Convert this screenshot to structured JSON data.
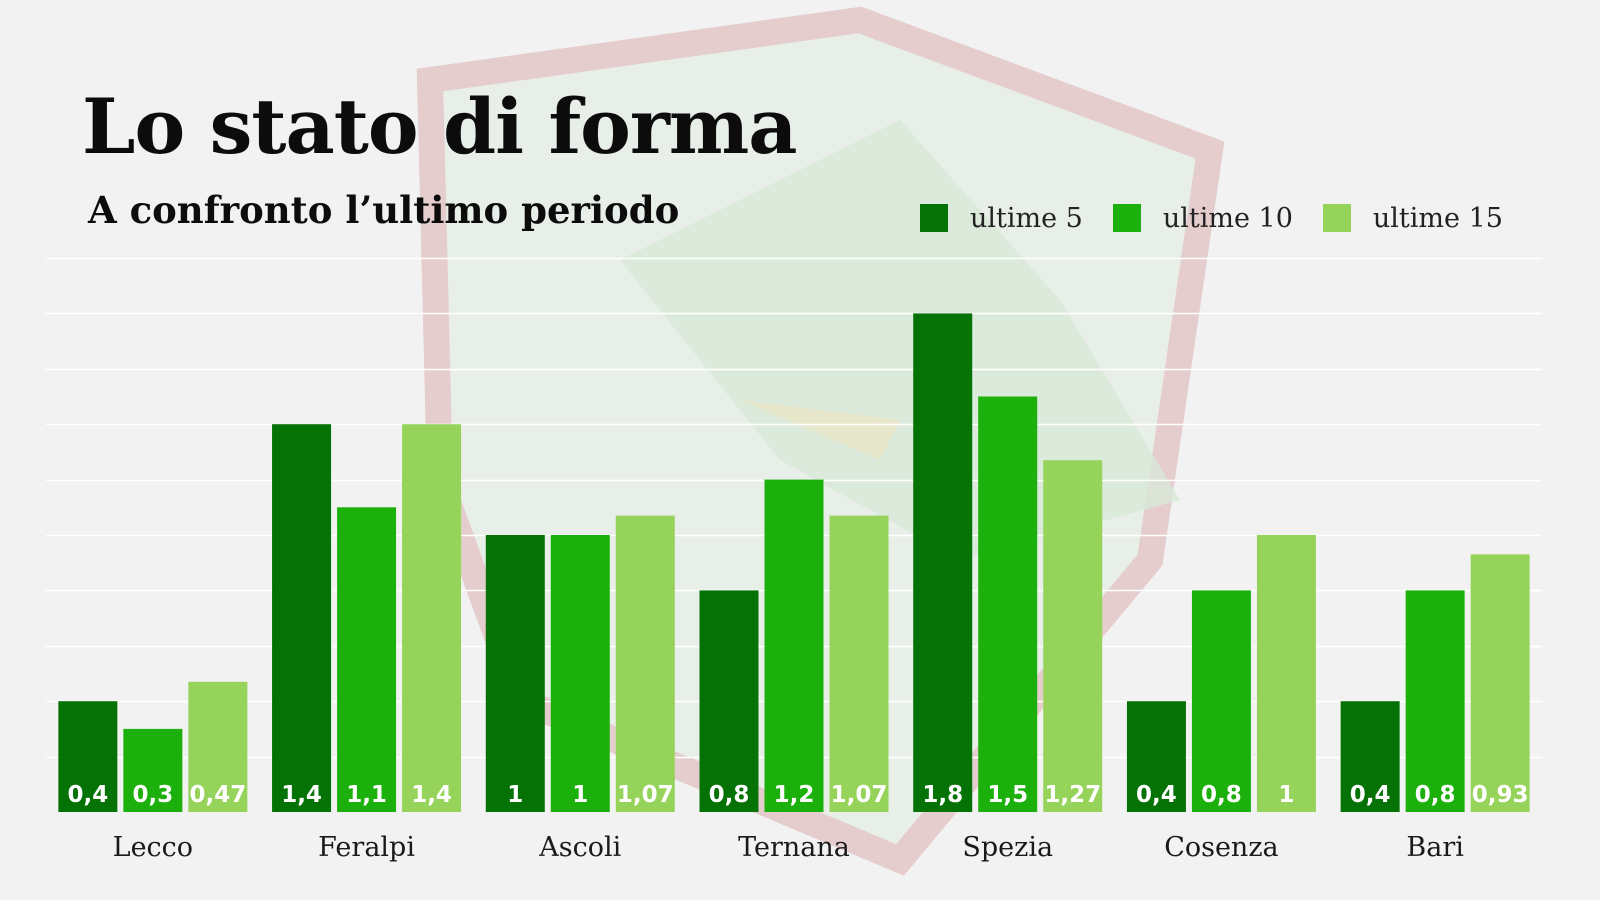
{
  "header": {
    "title": "Lo stato di forma",
    "subtitle": "A confronto l’ultimo periodo"
  },
  "chart_data": {
    "type": "bar",
    "title": "Lo stato di forma",
    "subtitle": "A confronto l’ultimo periodo",
    "categories": [
      "Lecco",
      "Feralpi",
      "Ascoli",
      "Ternana",
      "Spezia",
      "Cosenza",
      "Bari"
    ],
    "series": [
      {
        "name": "ultime 5",
        "color": "#047205",
        "values": [
          0.4,
          1.4,
          1,
          0.8,
          1.8,
          0.4,
          0.4
        ],
        "labels": [
          "0,4",
          "1,4",
          "1",
          "0,8",
          "1,8",
          "0,4",
          "0,4"
        ]
      },
      {
        "name": "ultime 10",
        "color": "#1cb00c",
        "values": [
          0.3,
          1.1,
          1,
          1.2,
          1.5,
          0.8,
          0.8
        ],
        "labels": [
          "0,3",
          "1,1",
          "1",
          "1,2",
          "1,5",
          "0,8",
          "0,8"
        ]
      },
      {
        "name": "ultime 15",
        "color": "#96d35b",
        "values": [
          0.47,
          1.4,
          1.07,
          1.07,
          1.27,
          1,
          0.93
        ],
        "labels": [
          "0,47",
          "1,4",
          "1,07",
          "1,07",
          "1,27",
          "1",
          "0,93"
        ]
      }
    ],
    "xlabel": "",
    "ylabel": "",
    "ylim": [
      0,
      2
    ],
    "grid": true,
    "legend": "top-right",
    "data_labels": "inside-bottom"
  }
}
